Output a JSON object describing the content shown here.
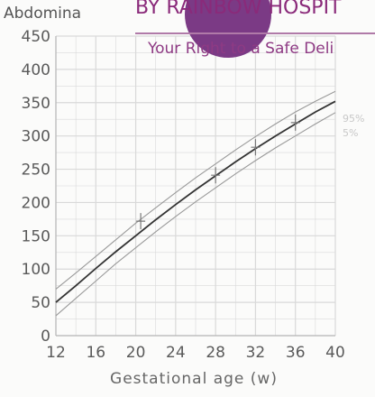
{
  "chart_data": {
    "type": "line",
    "title": "Abdomina",
    "xlabel": "Gestational age (w)",
    "ylabel": "",
    "xlim": [
      12,
      40
    ],
    "ylim": [
      0,
      450
    ],
    "xticks": [
      12,
      16,
      20,
      24,
      28,
      32,
      36,
      40
    ],
    "yticks": [
      0,
      50,
      100,
      150,
      200,
      250,
      300,
      350,
      400,
      450
    ],
    "grid": true,
    "percentile_labels": [
      "95%",
      "5%"
    ],
    "series": [
      {
        "x": [
          12,
          14,
          16,
          18,
          20,
          22,
          24,
          26,
          28,
          30,
          32,
          34,
          36,
          38,
          40
        ],
        "values": [
          70,
          94,
          119,
          144,
          169,
          192,
          215,
          237,
          258,
          279,
          299,
          318,
          336,
          352,
          367
        ]
      },
      {
        "x": [
          12,
          14,
          16,
          18,
          20,
          22,
          24,
          26,
          28,
          30,
          32,
          34,
          36,
          38,
          40
        ],
        "values": [
          50,
          75,
          101,
          126,
          150,
          174,
          197,
          219,
          240,
          261,
          281,
          300,
          318,
          336,
          352
        ]
      },
      {
        "x": [
          12,
          14,
          16,
          18,
          20,
          22,
          24,
          26,
          28,
          30,
          32,
          34,
          36,
          38,
          40
        ],
        "values": [
          30,
          56,
          82,
          108,
          132,
          156,
          179,
          201,
          222,
          243,
          263,
          282,
          300,
          318,
          335
        ]
      }
    ],
    "markers": [
      {
        "x": 20.5,
        "y": 172
      },
      {
        "x": 28,
        "y": 241
      },
      {
        "x": 32,
        "y": 283
      },
      {
        "x": 36,
        "y": 320
      }
    ]
  },
  "banner": {
    "heading": "BY RAINBOW HOSPIT",
    "subtitle": "Your Right to a Safe Deli",
    "colors": {
      "brand": "#7b3a85",
      "accent": "#8e3a84"
    }
  },
  "colors": {
    "median": "#333333",
    "bands": "#9a9a9a",
    "grid": "#d9d9d9",
    "frame": "#b8b8b8"
  }
}
